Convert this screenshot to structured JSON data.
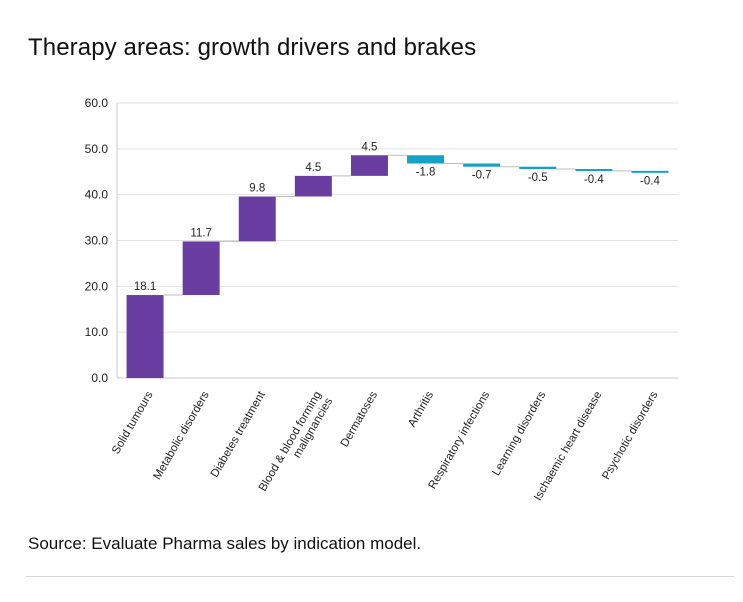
{
  "header": {
    "title": "Therapy areas: growth drivers and brakes"
  },
  "footer": {
    "source": "Source: Evaluate Pharma sales by indication model."
  },
  "colors": {
    "positive": "#6a3ea1",
    "negative": "#16a2c7",
    "grid": "#e2e2e2",
    "connector": "#bdbdbd"
  },
  "chart_data": {
    "type": "bar",
    "subtype": "waterfall",
    "categories": [
      "Solid tumours",
      "Metabolic disorders",
      "Diabetes treatment",
      "Blood & blood forming malignancies",
      "Dermatoses",
      "Arthritis",
      "Respiratory infections",
      "Learning disorders",
      "Ischaemic heart disease",
      "Psychotic disorders"
    ],
    "category_lines": [
      [
        "Solid tumours"
      ],
      [
        "Metabolic disorders"
      ],
      [
        "Diabetes treatment"
      ],
      [
        "Blood & blood forming",
        "malignancies"
      ],
      [
        "Dermatoses"
      ],
      [
        "Arthritis"
      ],
      [
        "Respiratory infections"
      ],
      [
        "Learning disorders"
      ],
      [
        "Ischaemic heart disease"
      ],
      [
        "Psychotic disorders"
      ]
    ],
    "values": [
      18.1,
      11.7,
      9.8,
      4.5,
      4.5,
      -1.8,
      -0.7,
      -0.5,
      -0.4,
      -0.4
    ],
    "value_labels": [
      "18.1",
      "11.7",
      "9.8",
      "4.5",
      "4.5",
      "-1.8",
      "-0.7",
      "-0.5",
      "-0.4",
      "-0.4"
    ],
    "title": "",
    "xlabel": "",
    "ylabel": "",
    "ylim": [
      0,
      60
    ],
    "yticks": [
      0,
      10,
      20,
      30,
      40,
      50,
      60
    ],
    "ytick_labels": [
      "0.0",
      "10.0",
      "20.0",
      "30.0",
      "40.0",
      "50.0",
      "60.0"
    ],
    "grid": true,
    "legend": "none"
  }
}
